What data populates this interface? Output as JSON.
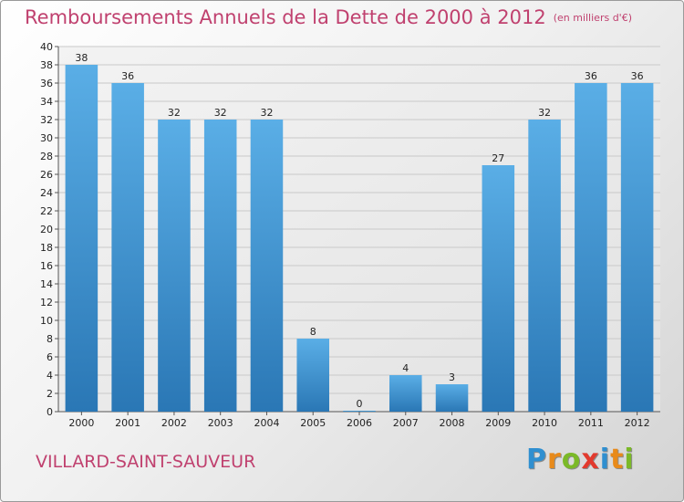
{
  "chart_data": {
    "type": "bar",
    "title": "Remboursements Annuels de la Dette de 2000 à 2012",
    "subtitle": "(en milliers d'€)",
    "xlabel": "",
    "ylabel": "",
    "categories": [
      "2000",
      "2001",
      "2002",
      "2003",
      "2004",
      "2005",
      "2006",
      "2007",
      "2008",
      "2009",
      "2010",
      "2011",
      "2012"
    ],
    "values": [
      38,
      36,
      32,
      32,
      32,
      8,
      0,
      4,
      3,
      27,
      32,
      36,
      36
    ],
    "value_labels": [
      "38",
      "36",
      "32",
      "32",
      "32",
      "8",
      "0",
      "4",
      "3",
      "27",
      "32",
      "36",
      "36"
    ],
    "ylim": [
      0,
      40
    ],
    "yticks": [
      "0",
      "2",
      "4",
      "6",
      "8",
      "10",
      "12",
      "14",
      "16",
      "18",
      "20",
      "22",
      "24",
      "26",
      "28",
      "30",
      "32",
      "34",
      "36",
      "38",
      "40"
    ],
    "grid": true,
    "bar_color_top": "#5aaee6",
    "bar_color_bottom": "#2a77b5"
  },
  "footer": {
    "commune": "VILLARD-SAINT-SAUVEUR",
    "logo_letters": [
      {
        "char": "P",
        "color": "#2f8fd0"
      },
      {
        "char": "r",
        "color": "#e88a1a"
      },
      {
        "char": "o",
        "color": "#7bb928"
      },
      {
        "char": "x",
        "color": "#e23a2e"
      },
      {
        "char": "i",
        "color": "#2f8fd0"
      },
      {
        "char": "t",
        "color": "#e88a1a"
      },
      {
        "char": "i",
        "color": "#7bb928"
      }
    ]
  },
  "colors": {
    "title": "#c0416f"
  }
}
